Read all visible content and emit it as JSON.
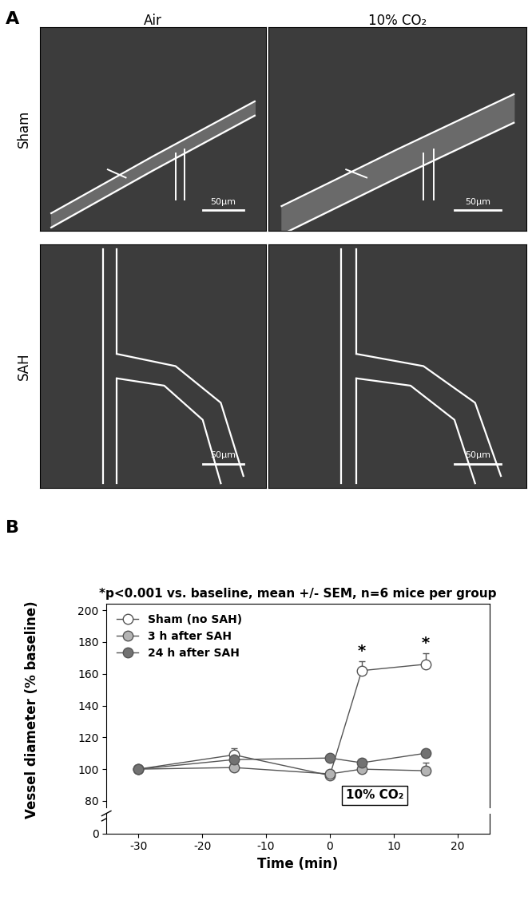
{
  "panel_a": {
    "label": "A",
    "columns": [
      "Air",
      "10% CO₂"
    ],
    "rows": [
      "Sham",
      "SAH"
    ],
    "scale_bar": "50μm"
  },
  "chart_data": {
    "type": "line",
    "label": "B",
    "title": "*p<0.001 vs. baseline, mean +/- SEM, n=6 mice per group",
    "x_label": "Time (min)",
    "y_label": "Vessel diameter (% baseline)",
    "xlim": [
      -35,
      25
    ],
    "xticks": [
      -30,
      -20,
      -10,
      0,
      10,
      20
    ],
    "ylim": [
      76,
      204
    ],
    "yticks": [
      80,
      100,
      120,
      140,
      160,
      180,
      200
    ],
    "ylim_lower": [
      0,
      10
    ],
    "yticks_lower": [
      0
    ],
    "legend": "upper left",
    "period_label": "10% CO₂",
    "series": [
      {
        "name": "Sham (no SAH)",
        "color": "#ffffff",
        "marker": "circle",
        "x": [
          -30,
          -15,
          0,
          5,
          15
        ],
        "values": [
          100,
          109,
          96,
          162,
          166
        ],
        "errors": [
          0,
          4,
          1,
          6,
          7
        ],
        "significance": {
          "label": "*",
          "x": [
            5,
            15
          ]
        }
      },
      {
        "name": "3 h after SAH",
        "color": "#b4b4b4",
        "marker": "circle",
        "x": [
          -30,
          -15,
          0,
          5,
          15
        ],
        "values": [
          100,
          101,
          97,
          100,
          99
        ],
        "errors": [
          0,
          1,
          1,
          1,
          5
        ]
      },
      {
        "name": "24 h after SAH",
        "color": "#727272",
        "marker": "circle",
        "x": [
          -30,
          -15,
          0,
          5,
          15
        ],
        "values": [
          100,
          106,
          107,
          104,
          110
        ],
        "errors": [
          0,
          1,
          1,
          1,
          1
        ]
      }
    ]
  }
}
